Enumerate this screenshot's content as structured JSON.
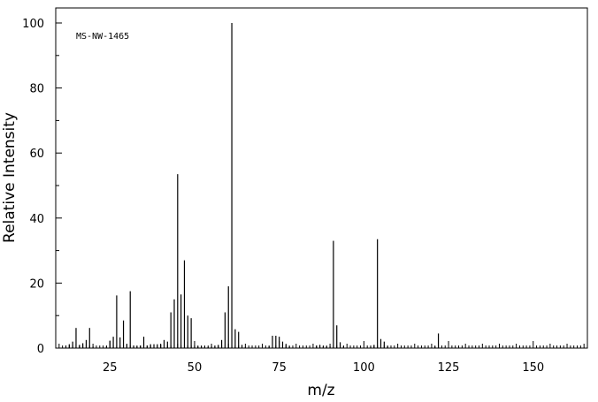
{
  "chart_data": {
    "type": "bar",
    "title": "",
    "annotation": "MS-NW-1465",
    "xlabel": "m/z",
    "ylabel": "Relative Intensity",
    "xlim": [
      9,
      166
    ],
    "ylim": [
      0,
      100
    ],
    "xticks": [
      25,
      50,
      75,
      100,
      125,
      150
    ],
    "yticks": [
      0,
      20,
      40,
      60,
      80,
      100
    ],
    "grid": false,
    "series": [
      {
        "x": [
          12,
          13,
          14,
          15,
          16,
          17,
          18,
          19,
          20,
          24,
          25,
          26,
          27,
          28,
          29,
          30,
          31,
          32,
          33,
          34,
          35,
          36,
          37,
          38,
          39,
          40,
          41,
          42,
          43,
          44,
          45,
          46,
          47,
          48,
          49,
          50,
          51,
          52,
          53,
          54,
          55,
          56,
          57,
          58,
          59,
          60,
          61,
          62,
          63,
          64,
          65,
          72,
          73,
          74,
          75,
          76,
          77,
          78,
          86,
          87,
          88,
          89,
          90,
          91,
          92,
          93,
          94,
          102,
          103,
          104,
          105,
          106,
          107,
          121,
          122
        ],
        "values": [
          0.8,
          1.2,
          2,
          6.2,
          1,
          1.5,
          2.5,
          6.2,
          0.5,
          0.6,
          2.3,
          3.5,
          16.2,
          3.3,
          8.5,
          1.2,
          17.5,
          0.8,
          0.6,
          0.8,
          3.5,
          0.8,
          1.2,
          1.2,
          1.2,
          1.1,
          2.5,
          2,
          11,
          15,
          53.5,
          16.5,
          27,
          10,
          9.2,
          0.8,
          0.5,
          0.6,
          0.5,
          0.4,
          0.6,
          0.7,
          1,
          2.5,
          11,
          19,
          100,
          5.8,
          5,
          1,
          0.4,
          0.6,
          3.8,
          3.8,
          3.5,
          2,
          1.3,
          0.5,
          0.8,
          1,
          0.6,
          0.5,
          0.6,
          33,
          7,
          1.8,
          0.6,
          0.4,
          1,
          33.5,
          2.8,
          2,
          0.6,
          0.5,
          4.5
        ]
      }
    ]
  }
}
